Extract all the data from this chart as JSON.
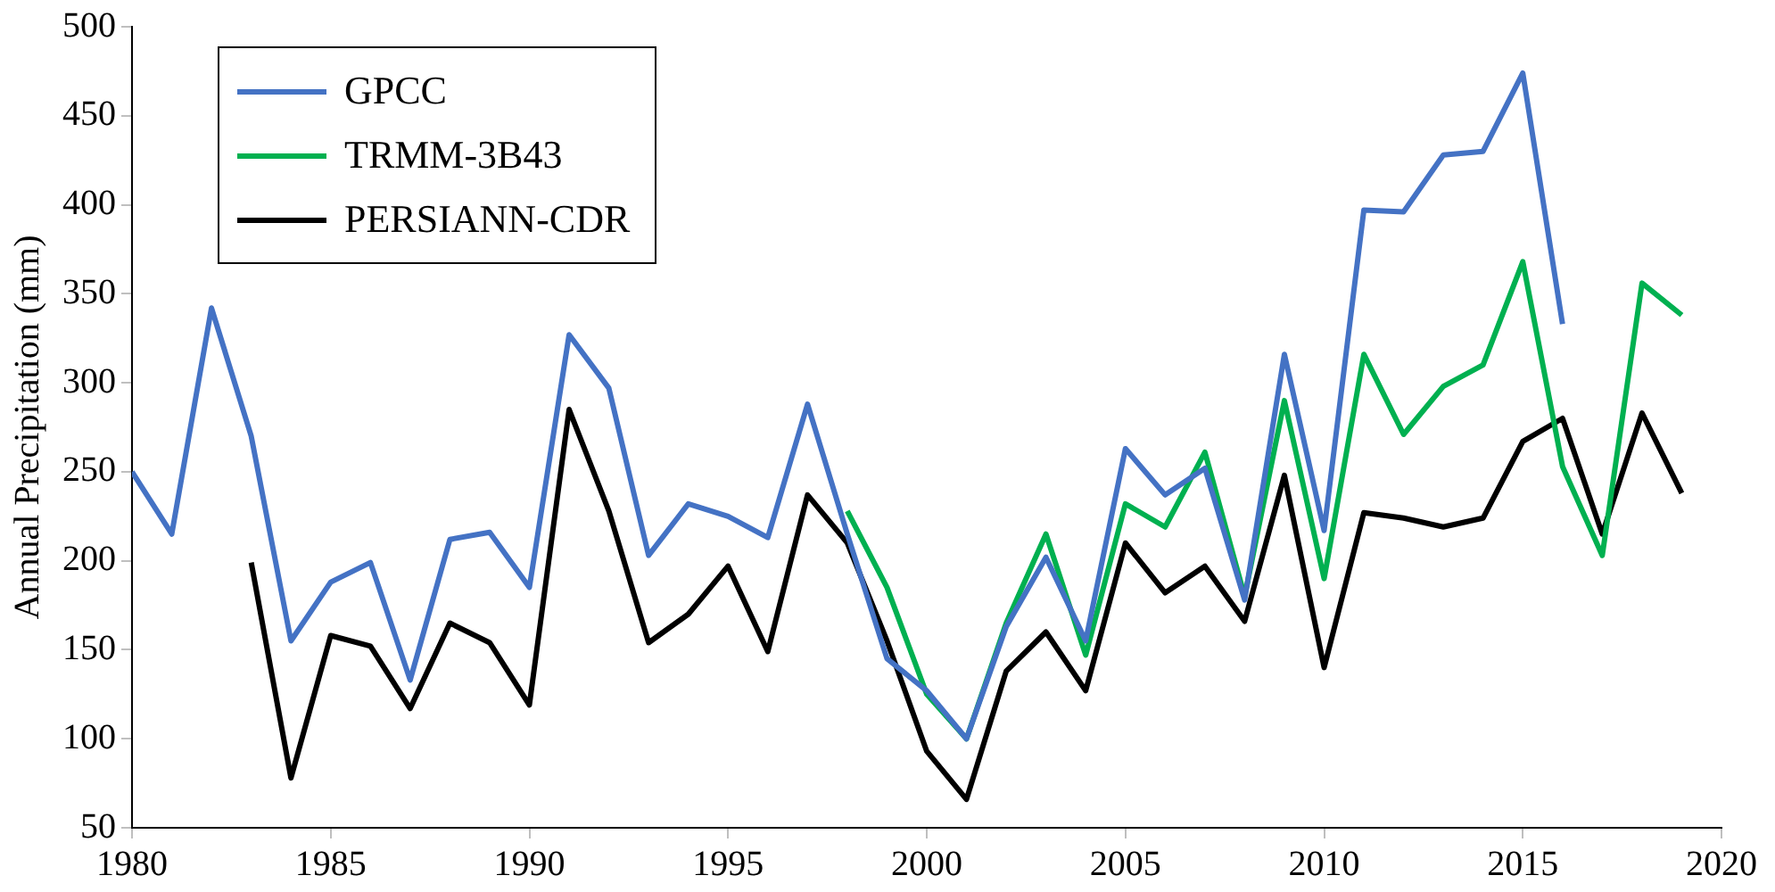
{
  "chart_data": {
    "type": "line",
    "ylabel": "Annual Precipitation (mm)",
    "x": [
      1980,
      1981,
      1982,
      1983,
      1984,
      1985,
      1986,
      1987,
      1988,
      1989,
      1990,
      1991,
      1992,
      1993,
      1994,
      1995,
      1996,
      1997,
      1998,
      1999,
      2000,
      2001,
      2002,
      2003,
      2004,
      2005,
      2006,
      2007,
      2008,
      2009,
      2010,
      2011,
      2012,
      2013,
      2014,
      2015,
      2016,
      2017,
      2018,
      2019
    ],
    "series": [
      {
        "name": "GPCC",
        "color": "#4472c4",
        "values": [
          250,
          215,
          342,
          270,
          155,
          188,
          199,
          133,
          212,
          216,
          185,
          327,
          297,
          203,
          232,
          225,
          213,
          288,
          215,
          145,
          127,
          100,
          163,
          202,
          155,
          263,
          237,
          252,
          178,
          316,
          217,
          397,
          396,
          428,
          430,
          474,
          333,
          null,
          null,
          null
        ]
      },
      {
        "name": "TRMM-3B43",
        "color": "#00b050",
        "values": [
          null,
          null,
          null,
          null,
          null,
          null,
          null,
          null,
          null,
          null,
          null,
          null,
          null,
          null,
          null,
          null,
          null,
          null,
          228,
          185,
          125,
          100,
          165,
          215,
          147,
          232,
          219,
          261,
          180,
          290,
          190,
          316,
          271,
          298,
          310,
          368,
          253,
          203,
          356,
          338
        ]
      },
      {
        "name": "PERSIANN-CDR",
        "color": "#000000",
        "values": [
          null,
          null,
          null,
          199,
          78,
          158,
          152,
          117,
          165,
          154,
          119,
          285,
          228,
          154,
          170,
          197,
          149,
          237,
          210,
          155,
          93,
          66,
          138,
          160,
          127,
          210,
          182,
          197,
          166,
          248,
          140,
          227,
          224,
          219,
          224,
          267,
          280,
          215,
          283,
          238
        ]
      }
    ],
    "xlim": [
      1980,
      2020
    ],
    "xticks": [
      1980,
      1985,
      1990,
      1995,
      2000,
      2005,
      2010,
      2015,
      2020
    ],
    "ylim": [
      50,
      500
    ],
    "yticks": [
      50,
      100,
      150,
      200,
      250,
      300,
      350,
      400,
      450,
      500
    ],
    "grid": false,
    "legend": "top left",
    "marker": "none",
    "line_style": "solid"
  }
}
